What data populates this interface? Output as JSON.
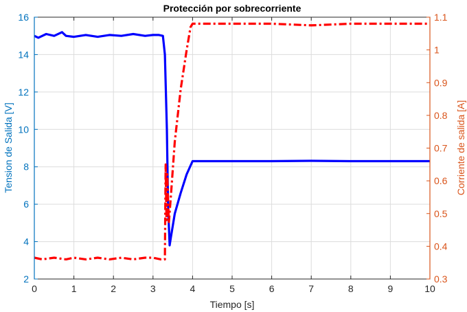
{
  "chart_data": {
    "type": "line",
    "title": "Protección por sobrecorriente",
    "xlabel": "Tiempo [s]",
    "ylabel_left": "Tension de Salida [V]",
    "ylabel_right": "Corriente de salida [A]",
    "xlim": [
      0,
      10
    ],
    "ylim_left": [
      2,
      16
    ],
    "ylim_right": [
      0.3,
      1.1
    ],
    "xticks": [
      0,
      1,
      2,
      3,
      4,
      5,
      6,
      7,
      8,
      9,
      10
    ],
    "yticks_left": [
      2,
      4,
      6,
      8,
      10,
      12,
      14,
      16
    ],
    "yticks_right": [
      0.3,
      0.4,
      0.5,
      0.6,
      0.7,
      0.8,
      0.9,
      1,
      1.1
    ],
    "grid": true,
    "colors": {
      "left_axis": "#0072BD",
      "right_axis": "#D95319",
      "voltage_line": "#0000FF",
      "current_line": "#FF0000",
      "grid": "#DCDCDC"
    },
    "series": [
      {
        "axis": "left",
        "style": "solid",
        "x": [
          0,
          0.1,
          0.3,
          0.5,
          0.7,
          0.8,
          1.0,
          1.3,
          1.6,
          1.9,
          2.2,
          2.5,
          2.8,
          3.0,
          3.15,
          3.25,
          3.3,
          3.35,
          3.38,
          3.42,
          3.45,
          3.55,
          3.7,
          3.85,
          4.0,
          4.3,
          5.0,
          6.0,
          7.0,
          8.0,
          9.0,
          10.0
        ],
        "values": [
          15.0,
          14.9,
          15.1,
          15.0,
          15.2,
          15.0,
          14.95,
          15.05,
          14.95,
          15.05,
          15.0,
          15.1,
          15.0,
          15.05,
          15.05,
          15.0,
          14.0,
          10.0,
          6.0,
          3.8,
          4.2,
          5.5,
          6.6,
          7.6,
          8.3,
          8.3,
          8.3,
          8.3,
          8.32,
          8.3,
          8.3,
          8.3
        ]
      },
      {
        "axis": "right",
        "style": "dashdot",
        "x": [
          0,
          0.2,
          0.5,
          0.8,
          1.0,
          1.3,
          1.6,
          1.9,
          2.2,
          2.5,
          2.8,
          3.0,
          3.2,
          3.3,
          3.32,
          3.34,
          3.36,
          3.4,
          3.45,
          3.55,
          3.7,
          3.85,
          3.95,
          4.0,
          4.3,
          5.0,
          6.0,
          7.0,
          8.0,
          9.0,
          10.0
        ],
        "values": [
          0.365,
          0.36,
          0.365,
          0.36,
          0.365,
          0.36,
          0.365,
          0.36,
          0.365,
          0.36,
          0.365,
          0.365,
          0.36,
          0.36,
          0.65,
          0.48,
          0.62,
          0.47,
          0.55,
          0.72,
          0.88,
          1.0,
          1.07,
          1.08,
          1.08,
          1.08,
          1.08,
          1.075,
          1.08,
          1.08,
          1.08
        ]
      }
    ]
  }
}
